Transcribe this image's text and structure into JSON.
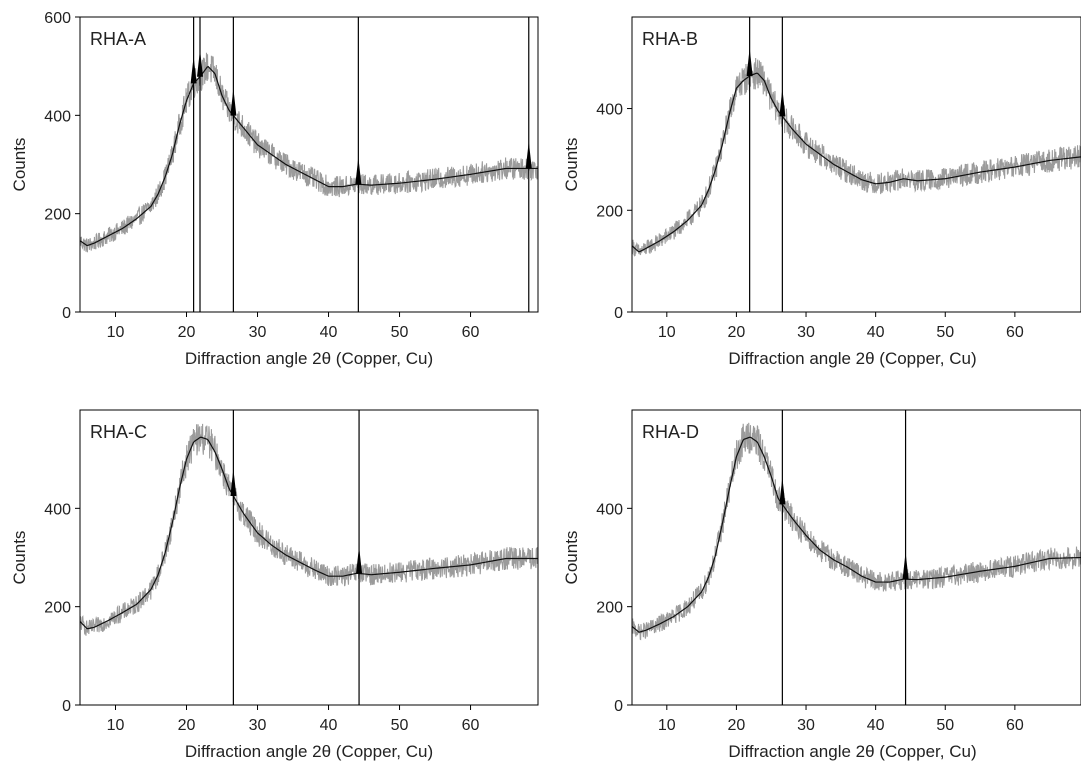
{
  "chart_data": [
    {
      "type": "line",
      "title": "RHA-A",
      "xlabel": "Diffraction angle 2θ (Copper, Cu)",
      "ylabel": "Counts",
      "xlim": [
        5,
        69.5
      ],
      "ylim": [
        0,
        600
      ],
      "xticks": [
        10,
        20,
        30,
        40,
        50,
        60
      ],
      "yticks": [
        0,
        200,
        400,
        600
      ],
      "grid": false,
      "colors": {
        "raw": "#9b9b9b",
        "fit": "#111111",
        "markers": "#000000"
      },
      "reference_lines": [
        21.0,
        21.9,
        26.6,
        44.2,
        68.2
      ],
      "series": [
        {
          "name": "",
          "x": [
            5,
            6,
            7,
            9,
            11,
            13,
            15,
            16,
            17,
            18,
            19,
            20,
            21,
            22,
            23,
            24,
            25,
            26,
            28,
            30,
            32,
            34,
            36,
            38,
            40,
            42,
            44,
            46,
            50,
            55,
            60,
            65,
            69.5
          ],
          "values": [
            145,
            135,
            140,
            155,
            170,
            190,
            215,
            240,
            275,
            320,
            380,
            430,
            465,
            480,
            500,
            485,
            440,
            410,
            375,
            340,
            320,
            300,
            285,
            270,
            255,
            255,
            260,
            258,
            262,
            270,
            280,
            292,
            292
          ]
        }
      ]
    },
    {
      "type": "line",
      "title": "RHA-B",
      "xlabel": "Diffraction angle 2θ (Copper, Cu)",
      "ylabel": "Counts",
      "xlim": [
        5,
        69.5
      ],
      "ylim": [
        0,
        580
      ],
      "xticks": [
        10,
        20,
        30,
        40,
        50,
        60
      ],
      "yticks": [
        0,
        200,
        400
      ],
      "grid": false,
      "colors": {
        "raw": "#9b9b9b",
        "fit": "#111111",
        "markers": "#000000"
      },
      "reference_lines": [
        21.9,
        26.6
      ],
      "series": [
        {
          "name": "",
          "x": [
            5,
            6,
            7,
            9,
            11,
            13,
            15,
            16,
            17,
            18,
            19,
            20,
            21,
            22,
            23,
            24,
            25,
            26,
            28,
            30,
            32,
            34,
            36,
            38,
            40,
            42,
            44,
            46,
            50,
            55,
            60,
            65,
            69.5
          ],
          "values": [
            130,
            118,
            125,
            140,
            158,
            180,
            210,
            240,
            280,
            330,
            390,
            440,
            455,
            465,
            470,
            455,
            420,
            395,
            360,
            330,
            310,
            290,
            275,
            260,
            252,
            255,
            262,
            258,
            262,
            275,
            285,
            298,
            305
          ]
        }
      ]
    },
    {
      "type": "line",
      "title": "RHA-C",
      "xlabel": "Diffraction angle 2θ (Copper, Cu)",
      "ylabel": "Counts",
      "xlim": [
        5,
        69.5
      ],
      "ylim": [
        0,
        600
      ],
      "xticks": [
        10,
        20,
        30,
        40,
        50,
        60
      ],
      "yticks": [
        0,
        200,
        400
      ],
      "grid": false,
      "colors": {
        "raw": "#9b9b9b",
        "fit": "#111111",
        "markers": "#000000"
      },
      "reference_lines": [
        26.6,
        44.3
      ],
      "series": [
        {
          "name": "",
          "x": [
            5,
            6,
            7,
            9,
            11,
            13,
            15,
            16,
            17,
            18,
            19,
            20,
            21,
            22,
            23,
            24,
            25,
            26,
            28,
            30,
            32,
            34,
            36,
            38,
            40,
            42,
            44,
            46,
            50,
            55,
            60,
            65,
            69.5
          ],
          "values": [
            170,
            155,
            158,
            172,
            188,
            205,
            235,
            265,
            310,
            370,
            440,
            500,
            535,
            545,
            540,
            515,
            480,
            440,
            390,
            350,
            325,
            305,
            290,
            275,
            262,
            262,
            268,
            265,
            270,
            278,
            285,
            298,
            298
          ]
        }
      ]
    },
    {
      "type": "line",
      "title": "RHA-D",
      "xlabel": "Diffraction angle 2θ (Copper, Cu)",
      "ylabel": "Counts",
      "xlim": [
        5,
        69.5
      ],
      "ylim": [
        0,
        600
      ],
      "xticks": [
        10,
        20,
        30,
        40,
        50,
        60
      ],
      "yticks": [
        0,
        200,
        400
      ],
      "grid": false,
      "colors": {
        "raw": "#9b9b9b",
        "fit": "#111111",
        "markers": "#000000"
      },
      "reference_lines": [
        26.6,
        44.3
      ],
      "series": [
        {
          "name": "",
          "x": [
            5,
            6,
            7,
            9,
            11,
            13,
            15,
            16,
            17,
            18,
            19,
            20,
            21,
            22,
            23,
            24,
            25,
            26,
            28,
            30,
            32,
            34,
            36,
            38,
            40,
            42,
            44,
            46,
            50,
            55,
            60,
            65,
            69.5
          ],
          "values": [
            160,
            148,
            152,
            165,
            180,
            200,
            230,
            260,
            305,
            370,
            440,
            505,
            540,
            545,
            535,
            505,
            465,
            420,
            380,
            345,
            315,
            295,
            280,
            262,
            250,
            250,
            256,
            255,
            260,
            272,
            282,
            298,
            300
          ]
        }
      ]
    }
  ]
}
